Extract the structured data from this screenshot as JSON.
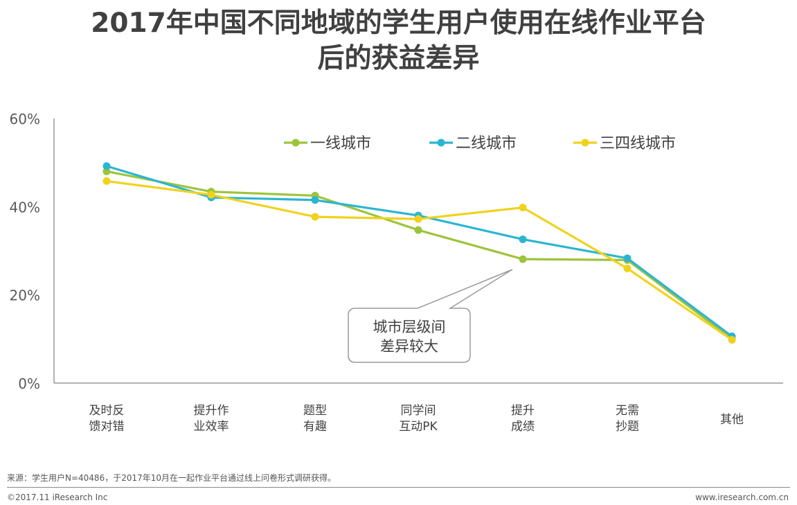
{
  "chart_data": {
    "type": "line",
    "title_lines": [
      "2017年中国不同地域的学生用户使用在线作业平台",
      "后的获益差异"
    ],
    "categories": [
      [
        "及时反",
        "馈对错"
      ],
      [
        "提升作",
        "业效率"
      ],
      [
        "题型",
        "有趣"
      ],
      [
        "同学间",
        "互动PK"
      ],
      [
        "提升",
        "成绩"
      ],
      [
        "无需",
        "抄题"
      ],
      [
        "其他"
      ]
    ],
    "series": [
      {
        "name": "一线城市",
        "color": "#9dc43b",
        "values": [
          48.0,
          43.4,
          42.5,
          34.7,
          28.1,
          27.9,
          10.0
        ]
      },
      {
        "name": "二线城市",
        "color": "#2cb5d1",
        "values": [
          49.2,
          42.1,
          41.5,
          38.0,
          32.6,
          28.3,
          10.6
        ]
      },
      {
        "name": "三四线城市",
        "color": "#f0d21e",
        "values": [
          45.8,
          42.7,
          37.7,
          37.2,
          39.8,
          26.0,
          9.8
        ]
      }
    ],
    "yticks": [
      "0%",
      "20%",
      "40%",
      "60%"
    ],
    "ytick_values": [
      0,
      20,
      40,
      60
    ],
    "ylim": [
      0,
      60
    ],
    "annotation": [
      "城市层级间",
      "差异较大"
    ]
  },
  "footer": {
    "source": "来源：学生用户N=40486，于2017年10月在一起作业平台通过线上问卷形式调研获得。",
    "copyright": "©2017.11 iResearch Inc",
    "website": "www.iresearch.com.cn"
  }
}
